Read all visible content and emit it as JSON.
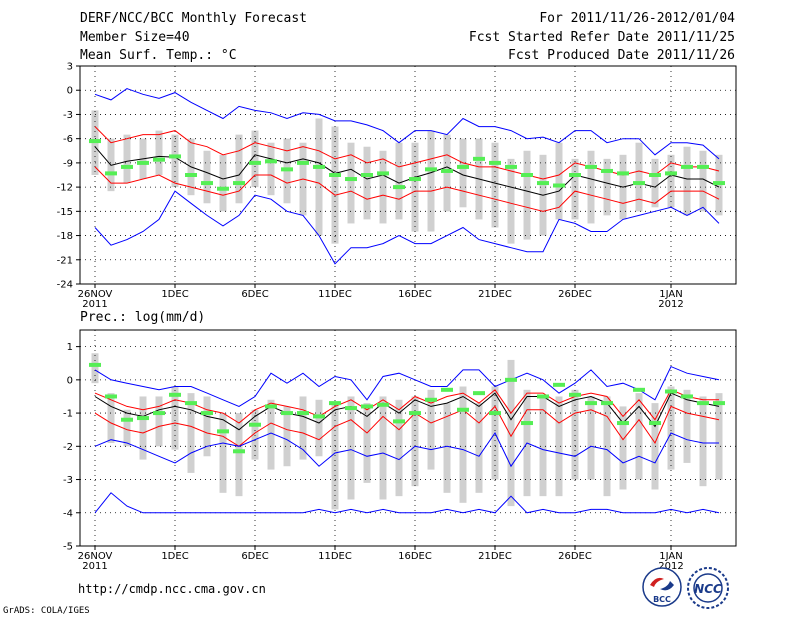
{
  "header": {
    "title": "DERF/NCC/BCC Monthly Forecast",
    "member_size": "Member Size=40",
    "variable": "Mean Surf. Temp.: °C",
    "period": "For 2011/11/26-2012/01/04",
    "start_date": "Fcst Started Refer Date 2011/11/25",
    "produced_date": "Fcst Produced Date 2011/11/26"
  },
  "footer": {
    "url": "http://cmdp.ncc.cma.gov.cn",
    "grads": "GrADS: COLA/IGES",
    "logo_bcc": "BCC",
    "logo_ncc": "NCC"
  },
  "colors": {
    "ensemble_max_min": "#0000ff",
    "std_band": "#ff0000",
    "mean": "#000000",
    "climatology": "#55ee55",
    "spread_box": "#d0d0d0"
  },
  "chart_data": [
    {
      "type": "line",
      "title": "Mean Surf. Temp.: °C",
      "x_tick_labels": [
        "26NOV\n2011",
        "1DEC",
        "6DEC",
        "11DEC",
        "16DEC",
        "21DEC",
        "26DEC",
        "1JAN\n2012"
      ],
      "x_tick_days": [
        0,
        5,
        10,
        15,
        20,
        25,
        30,
        36
      ],
      "ylim": [
        -24,
        3
      ],
      "yticks": [
        3,
        0,
        -3,
        -6,
        -9,
        -12,
        -15,
        -18,
        -21,
        -24
      ],
      "series": [
        {
          "name": "ensemble max",
          "color": "#0000ff",
          "values": [
            -0.5,
            -1.2,
            0.2,
            -0.5,
            -1.0,
            -0.3,
            -1.5,
            -2.5,
            -3.5,
            -2.0,
            -2.5,
            -2.8,
            -3.5,
            -2.8,
            -3.0,
            -3.8,
            -3.8,
            -4.3,
            -5.0,
            -6.5,
            -5.0,
            -5.0,
            -5.5,
            -3.5,
            -4.5,
            -4.5,
            -5.0,
            -6.0,
            -5.8,
            -6.5,
            -5.0,
            -5.0,
            -6.5,
            -6.0,
            -6.0,
            -8.0,
            -6.5,
            -6.5,
            -6.8,
            -8.5
          ]
        },
        {
          "name": "mean + std",
          "color": "#ff0000",
          "values": [
            -4.5,
            -6.5,
            -6.0,
            -5.5,
            -5.5,
            -5.0,
            -6.5,
            -7.0,
            -8.0,
            -7.5,
            -6.5,
            -7.0,
            -7.5,
            -7.0,
            -7.5,
            -8.5,
            -8.0,
            -9.0,
            -8.5,
            -9.5,
            -9.0,
            -8.5,
            -8.0,
            -9.0,
            -9.5,
            -9.5,
            -10.0,
            -10.5,
            -11.0,
            -10.5,
            -9.0,
            -9.5,
            -10.0,
            -10.5,
            -10.0,
            -10.5,
            -9.0,
            -9.5,
            -9.5,
            -10.0
          ]
        },
        {
          "name": "ensemble mean",
          "color": "#000000",
          "values": [
            -7.0,
            -9.3,
            -8.8,
            -8.5,
            -8.2,
            -8.3,
            -9.5,
            -10.2,
            -11.0,
            -10.5,
            -8.0,
            -8.5,
            -9.0,
            -8.5,
            -9.0,
            -10.3,
            -9.8,
            -11.0,
            -10.5,
            -11.5,
            -10.8,
            -10.2,
            -9.5,
            -10.5,
            -11.0,
            -11.5,
            -12.0,
            -12.5,
            -13.0,
            -12.5,
            -10.5,
            -11.0,
            -11.5,
            -12.0,
            -11.5,
            -12.0,
            -10.5,
            -11.0,
            -11.0,
            -12.0
          ]
        },
        {
          "name": "mean - std",
          "color": "#ff0000",
          "values": [
            -9.5,
            -11.5,
            -11.5,
            -11.0,
            -10.5,
            -11.5,
            -12.0,
            -12.5,
            -13.0,
            -12.5,
            -10.5,
            -10.5,
            -11.5,
            -11.0,
            -11.5,
            -13.0,
            -12.5,
            -13.5,
            -13.0,
            -13.5,
            -12.5,
            -12.5,
            -12.0,
            -12.5,
            -13.0,
            -13.5,
            -14.0,
            -14.5,
            -15.0,
            -14.5,
            -12.5,
            -13.0,
            -13.5,
            -14.0,
            -13.5,
            -14.0,
            -12.5,
            -12.5,
            -12.5,
            -13.5
          ]
        },
        {
          "name": "ensemble min",
          "color": "#0000ff",
          "values": [
            -17.0,
            -19.2,
            -18.5,
            -17.5,
            -16.0,
            -12.5,
            -14.0,
            -15.5,
            -16.8,
            -15.5,
            -13.0,
            -13.5,
            -15.0,
            -15.5,
            -18.0,
            -21.5,
            -19.5,
            -19.5,
            -19.0,
            -18.0,
            -19.0,
            -19.0,
            -18.0,
            -17.0,
            -18.5,
            -19.0,
            -19.5,
            -20.0,
            -20.0,
            -16.0,
            -16.5,
            -17.5,
            -17.5,
            -16.0,
            -15.5,
            -15.0,
            -14.5,
            -15.5,
            -14.5,
            -16.5
          ]
        },
        {
          "name": "climatology",
          "color": "#55ee55",
          "type": "marker",
          "values": [
            -6.3,
            -10.3,
            -9.5,
            -9.0,
            -8.6,
            -8.2,
            -10.5,
            -11.5,
            -12.2,
            -11.5,
            -9.0,
            -8.8,
            -9.8,
            -9.0,
            -9.5,
            -10.5,
            -11.0,
            -10.5,
            -10.3,
            -12.0,
            -11.0,
            -9.8,
            -10.0,
            -9.5,
            -8.5,
            -9.0,
            -9.5,
            -10.5,
            -11.5,
            -11.8,
            -10.5,
            -9.5,
            -10.0,
            -10.3,
            -11.5,
            -10.5,
            -10.3,
            -9.5,
            -9.5,
            -11.5
          ]
        },
        {
          "name": "spread top",
          "color": "#d0d0d0",
          "type": "box",
          "values": [
            -2.5,
            -6.0,
            -5.5,
            -6.0,
            -5.0,
            -5.5,
            -6.0,
            -7.5,
            -8.0,
            -5.5,
            -5.0,
            -6.5,
            -6.0,
            -6.5,
            -3.5,
            -4.5,
            -6.5,
            -7.0,
            -7.5,
            -6.5,
            -6.5,
            -5.0,
            -5.5,
            -6.0,
            -6.0,
            -6.5,
            -8.5,
            -7.5,
            -8.0,
            -6.5,
            -8.5,
            -7.5,
            -8.5,
            -8.0,
            -6.5,
            -8.5,
            -8.0,
            -7.0,
            -7.5,
            -8.0
          ]
        },
        {
          "name": "spread bottom",
          "color": "#d0d0d0",
          "type": "box",
          "values": [
            -10.5,
            -12.5,
            -11.5,
            -11.0,
            -10.5,
            -12.0,
            -13.0,
            -14.0,
            -15.0,
            -14.0,
            -12.0,
            -13.0,
            -14.0,
            -15.5,
            -18.0,
            -19.0,
            -16.5,
            -16.0,
            -16.5,
            -16.0,
            -17.5,
            -17.5,
            -15.0,
            -14.5,
            -16.0,
            -17.0,
            -19.0,
            -18.5,
            -18.0,
            -16.0,
            -16.0,
            -16.5,
            -15.5,
            -16.0,
            -15.0,
            -14.5,
            -14.5,
            -15.5,
            -15.0,
            -15.5
          ]
        }
      ]
    },
    {
      "type": "line",
      "title": "Prec.: log(mm/d)",
      "x_tick_labels": [
        "26NOV\n2011",
        "1DEC",
        "6DEC",
        "11DEC",
        "16DEC",
        "21DEC",
        "26DEC",
        "1JAN\n2012"
      ],
      "x_tick_days": [
        0,
        5,
        10,
        15,
        20,
        25,
        30,
        36
      ],
      "ylim": [
        -5,
        1.5
      ],
      "yticks": [
        1,
        0,
        -1,
        -2,
        -3,
        -4,
        -5
      ],
      "series": [
        {
          "name": "ensemble max",
          "color": "#0000ff",
          "values": [
            0.3,
            0.0,
            -0.1,
            -0.2,
            -0.3,
            -0.2,
            -0.2,
            -0.4,
            -0.6,
            -0.8,
            -0.5,
            0.2,
            -0.1,
            0.2,
            -0.2,
            0.1,
            0.0,
            -0.6,
            0.1,
            0.2,
            0.0,
            -0.2,
            -0.2,
            0.3,
            0.3,
            -0.2,
            0.0,
            0.2,
            0.0,
            -0.4,
            -0.1,
            0.3,
            -0.2,
            -0.1,
            -0.3,
            -0.6,
            0.4,
            0.2,
            0.1,
            0.0
          ]
        },
        {
          "name": "mean + std",
          "color": "#ff0000",
          "values": [
            -0.4,
            -0.6,
            -0.8,
            -0.9,
            -0.8,
            -0.6,
            -0.7,
            -0.9,
            -1.0,
            -1.3,
            -0.9,
            -0.7,
            -0.8,
            -0.9,
            -1.1,
            -0.8,
            -0.6,
            -0.9,
            -0.6,
            -0.9,
            -0.5,
            -0.7,
            -0.5,
            -0.4,
            -0.7,
            -0.3,
            -1.0,
            -0.4,
            -0.4,
            -0.7,
            -0.5,
            -0.4,
            -0.5,
            -1.1,
            -0.6,
            -1.2,
            -0.3,
            -0.5,
            -0.6,
            -0.6
          ]
        },
        {
          "name": "ensemble mean",
          "color": "#000000",
          "values": [
            -0.5,
            -0.8,
            -1.0,
            -1.1,
            -0.9,
            -0.8,
            -0.9,
            -1.1,
            -1.2,
            -1.5,
            -1.1,
            -0.8,
            -1.0,
            -1.1,
            -1.3,
            -0.9,
            -0.8,
            -1.1,
            -0.7,
            -1.0,
            -0.6,
            -0.8,
            -0.7,
            -0.5,
            -0.8,
            -0.4,
            -1.2,
            -0.5,
            -0.5,
            -0.8,
            -0.6,
            -0.5,
            -0.7,
            -1.3,
            -0.8,
            -1.4,
            -0.4,
            -0.6,
            -0.7,
            -0.8
          ]
        },
        {
          "name": "mean - std",
          "color": "#ff0000",
          "values": [
            -1.0,
            -1.3,
            -1.5,
            -1.6,
            -1.4,
            -1.3,
            -1.4,
            -1.6,
            -1.7,
            -2.0,
            -1.6,
            -1.3,
            -1.5,
            -1.6,
            -1.8,
            -1.4,
            -1.2,
            -1.6,
            -1.1,
            -1.5,
            -1.0,
            -1.3,
            -1.1,
            -0.9,
            -1.3,
            -0.8,
            -1.7,
            -0.9,
            -0.9,
            -1.3,
            -1.0,
            -0.9,
            -1.1,
            -1.8,
            -1.2,
            -1.9,
            -0.8,
            -1.0,
            -1.1,
            -1.2
          ]
        },
        {
          "name": "ensemble min",
          "color": "#0000ff",
          "values": [
            -2.0,
            -1.8,
            -1.9,
            -2.1,
            -2.3,
            -2.5,
            -2.2,
            -2.0,
            -1.9,
            -2.0,
            -1.8,
            -1.6,
            -1.8,
            -2.1,
            -2.6,
            -2.2,
            -2.1,
            -2.3,
            -2.2,
            -2.4,
            -2.0,
            -2.1,
            -2.0,
            -2.1,
            -2.3,
            -1.6,
            -2.6,
            -1.9,
            -2.1,
            -2.2,
            -2.3,
            -2.0,
            -2.1,
            -2.5,
            -2.3,
            -2.5,
            -1.6,
            -1.8,
            -1.9,
            -1.9
          ]
        },
        {
          "name": "ensemble min floor",
          "color": "#0000ff",
          "values": [
            -4.0,
            -3.4,
            -3.8,
            -4.0,
            -4.0,
            -4.0,
            -4.0,
            -4.0,
            -4.0,
            -4.0,
            -4.0,
            -4.0,
            -4.0,
            -4.0,
            -3.9,
            -4.0,
            -3.9,
            -4.0,
            -3.9,
            -4.0,
            -4.0,
            -4.0,
            -3.9,
            -4.0,
            -3.9,
            -4.0,
            -3.5,
            -4.0,
            -3.9,
            -4.0,
            -4.0,
            -3.9,
            -3.9,
            -4.0,
            -4.0,
            -4.0,
            -3.9,
            -4.0,
            -3.9,
            -4.0
          ]
        },
        {
          "name": "climatology",
          "color": "#55ee55",
          "type": "marker",
          "values": [
            0.45,
            -0.5,
            -1.2,
            -1.15,
            -1.0,
            -0.45,
            -0.7,
            -1.0,
            -1.55,
            -2.15,
            -1.35,
            -0.8,
            -1.0,
            -1.0,
            -1.1,
            -0.7,
            -0.85,
            -0.8,
            -0.75,
            -1.25,
            -1.0,
            -0.6,
            -0.3,
            -0.9,
            -0.4,
            -1.0,
            0.0,
            -1.3,
            -0.5,
            -0.15,
            -0.45,
            -0.7,
            -0.7,
            -1.3,
            -0.3,
            -1.3,
            -0.35,
            -0.5,
            -0.7,
            -0.7
          ]
        },
        {
          "name": "spread top",
          "color": "#d0d0d0",
          "type": "box",
          "values": [
            0.8,
            -0.4,
            -0.9,
            -0.5,
            -0.5,
            -0.2,
            -0.4,
            -0.5,
            -1.0,
            -1.0,
            -0.9,
            -0.6,
            -0.8,
            -0.5,
            -0.6,
            -0.7,
            -0.5,
            -0.7,
            -0.5,
            -0.6,
            -0.5,
            -0.3,
            -0.7,
            -0.2,
            -0.7,
            -0.2,
            0.6,
            -0.3,
            -0.5,
            -0.5,
            -0.3,
            -0.5,
            -0.5,
            -0.8,
            -0.4,
            -0.7,
            -0.2,
            -0.3,
            -0.5,
            -0.4
          ]
        },
        {
          "name": "spread bottom",
          "color": "#d0d0d0",
          "type": "box",
          "values": [
            -0.1,
            -1.9,
            -2.0,
            -2.4,
            -2.0,
            -2.1,
            -2.8,
            -2.3,
            -3.4,
            -3.5,
            -2.4,
            -2.7,
            -2.6,
            -2.4,
            -2.3,
            -3.9,
            -3.6,
            -3.1,
            -3.6,
            -3.5,
            -3.2,
            -2.7,
            -3.4,
            -3.7,
            -3.4,
            -3.0,
            -3.8,
            -3.5,
            -3.5,
            -3.5,
            -3.0,
            -3.0,
            -3.5,
            -3.3,
            -3.0,
            -3.3,
            -2.7,
            -2.5,
            -3.2,
            -3.0
          ]
        }
      ]
    }
  ]
}
